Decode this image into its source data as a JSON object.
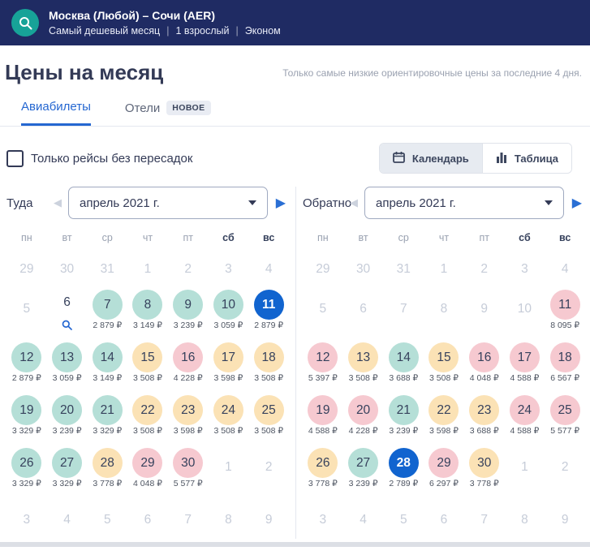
{
  "header": {
    "route": "Москва (Любой) – Сочи (AER)",
    "trip_type": "Самый дешевый месяц",
    "passengers": "1 взрослый",
    "cabin_class": "Эконом"
  },
  "page": {
    "title": "Цены на месяц",
    "note": "Только самые низкие ориентировочные цены за последние 4 дня."
  },
  "tabs": {
    "flights": "Авиабилеты",
    "hotels": "Отели",
    "hotels_badge": "НОВОЕ"
  },
  "filters": {
    "direct_only_label": "Только рейсы без пересадок",
    "direct_only_checked": false
  },
  "view_toggle": {
    "calendar_label": "Календарь",
    "table_label": "Таблица",
    "active": "calendar"
  },
  "weekdays": [
    "пн",
    "вт",
    "ср",
    "чт",
    "пт",
    "сб",
    "вс"
  ],
  "currency": "₽",
  "colors": {
    "header_bg": "#1f2b63",
    "accent_blue": "#2567d1",
    "selected_day": "#1164cf",
    "price_low": "#b5dfd7",
    "price_medium": "#fbe2b5",
    "price_high": "#f6c9d0"
  },
  "calendars": [
    {
      "direction": "Туда",
      "month": "апрель 2021 г.",
      "weeks": [
        [
          {
            "day": 29,
            "muted": true
          },
          {
            "day": 30,
            "muted": true
          },
          {
            "day": 31,
            "muted": true
          },
          {
            "day": 1,
            "muted": true
          },
          {
            "day": 2,
            "muted": true
          },
          {
            "day": 3,
            "muted": true
          },
          {
            "day": 4,
            "muted": true
          }
        ],
        [
          {
            "day": 5,
            "muted": true
          },
          {
            "day": 6,
            "search": true
          },
          {
            "day": 7,
            "color": "low",
            "price": "2 879 ₽"
          },
          {
            "day": 8,
            "color": "low",
            "price": "3 149 ₽"
          },
          {
            "day": 9,
            "color": "low",
            "price": "3 239 ₽"
          },
          {
            "day": 10,
            "color": "low",
            "price": "3 059 ₽"
          },
          {
            "day": 11,
            "color": "selected",
            "price": "2 879 ₽"
          }
        ],
        [
          {
            "day": 12,
            "color": "low",
            "price": "2 879 ₽"
          },
          {
            "day": 13,
            "color": "low",
            "price": "3 059 ₽"
          },
          {
            "day": 14,
            "color": "low",
            "price": "3 149 ₽"
          },
          {
            "day": 15,
            "color": "mid",
            "price": "3 508 ₽"
          },
          {
            "day": 16,
            "color": "high",
            "price": "4 228 ₽"
          },
          {
            "day": 17,
            "color": "mid",
            "price": "3 598 ₽"
          },
          {
            "day": 18,
            "color": "mid",
            "price": "3 508 ₽"
          }
        ],
        [
          {
            "day": 19,
            "color": "low",
            "price": "3 329 ₽"
          },
          {
            "day": 20,
            "color": "low",
            "price": "3 239 ₽"
          },
          {
            "day": 21,
            "color": "low",
            "price": "3 329 ₽"
          },
          {
            "day": 22,
            "color": "mid",
            "price": "3 508 ₽"
          },
          {
            "day": 23,
            "color": "mid",
            "price": "3 598 ₽"
          },
          {
            "day": 24,
            "color": "mid",
            "price": "3 508 ₽"
          },
          {
            "day": 25,
            "color": "mid",
            "price": "3 508 ₽"
          }
        ],
        [
          {
            "day": 26,
            "color": "low",
            "price": "3 329 ₽"
          },
          {
            "day": 27,
            "color": "low",
            "price": "3 329 ₽"
          },
          {
            "day": 28,
            "color": "mid",
            "price": "3 778 ₽"
          },
          {
            "day": 29,
            "color": "high",
            "price": "4 048 ₽"
          },
          {
            "day": 30,
            "color": "high",
            "price": "5 577 ₽"
          },
          {
            "day": 1,
            "muted": true
          },
          {
            "day": 2,
            "muted": true
          }
        ],
        [
          {
            "day": 3,
            "muted": true
          },
          {
            "day": 4,
            "muted": true
          },
          {
            "day": 5,
            "muted": true
          },
          {
            "day": 6,
            "muted": true
          },
          {
            "day": 7,
            "muted": true
          },
          {
            "day": 8,
            "muted": true
          },
          {
            "day": 9,
            "muted": true
          }
        ]
      ]
    },
    {
      "direction": "Обратно",
      "month": "апрель 2021 г.",
      "weeks": [
        [
          {
            "day": 29,
            "muted": true
          },
          {
            "day": 30,
            "muted": true
          },
          {
            "day": 31,
            "muted": true
          },
          {
            "day": 1,
            "muted": true
          },
          {
            "day": 2,
            "muted": true
          },
          {
            "day": 3,
            "muted": true
          },
          {
            "day": 4,
            "muted": true
          }
        ],
        [
          {
            "day": 5,
            "muted": true
          },
          {
            "day": 6,
            "muted": true
          },
          {
            "day": 7,
            "muted": true
          },
          {
            "day": 8,
            "muted": true
          },
          {
            "day": 9,
            "muted": true
          },
          {
            "day": 10,
            "muted": true
          },
          {
            "day": 11,
            "color": "high",
            "price": "8 095 ₽"
          }
        ],
        [
          {
            "day": 12,
            "color": "high",
            "price": "5 397 ₽"
          },
          {
            "day": 13,
            "color": "mid",
            "price": "3 508 ₽"
          },
          {
            "day": 14,
            "color": "low",
            "price": "3 688 ₽"
          },
          {
            "day": 15,
            "color": "mid",
            "price": "3 508 ₽"
          },
          {
            "day": 16,
            "color": "high",
            "price": "4 048 ₽"
          },
          {
            "day": 17,
            "color": "high",
            "price": "4 588 ₽"
          },
          {
            "day": 18,
            "color": "high",
            "price": "6 567 ₽"
          }
        ],
        [
          {
            "day": 19,
            "color": "high",
            "price": "4 588 ₽"
          },
          {
            "day": 20,
            "color": "high",
            "price": "4 228 ₽"
          },
          {
            "day": 21,
            "color": "low",
            "price": "3 239 ₽"
          },
          {
            "day": 22,
            "color": "mid",
            "price": "3 598 ₽"
          },
          {
            "day": 23,
            "color": "mid",
            "price": "3 688 ₽"
          },
          {
            "day": 24,
            "color": "high",
            "price": "4 588 ₽"
          },
          {
            "day": 25,
            "color": "high",
            "price": "5 577 ₽"
          }
        ],
        [
          {
            "day": 26,
            "color": "mid",
            "price": "3 778 ₽"
          },
          {
            "day": 27,
            "color": "low",
            "price": "3 239 ₽"
          },
          {
            "day": 28,
            "color": "selected",
            "price": "2 789 ₽"
          },
          {
            "day": 29,
            "color": "high",
            "price": "6 297 ₽"
          },
          {
            "day": 30,
            "color": "mid",
            "price": "3 778 ₽"
          },
          {
            "day": 1,
            "muted": true
          },
          {
            "day": 2,
            "muted": true
          }
        ],
        [
          {
            "day": 3,
            "muted": true
          },
          {
            "day": 4,
            "muted": true
          },
          {
            "day": 5,
            "muted": true
          },
          {
            "day": 6,
            "muted": true
          },
          {
            "day": 7,
            "muted": true
          },
          {
            "day": 8,
            "muted": true
          },
          {
            "day": 9,
            "muted": true
          }
        ]
      ]
    }
  ]
}
